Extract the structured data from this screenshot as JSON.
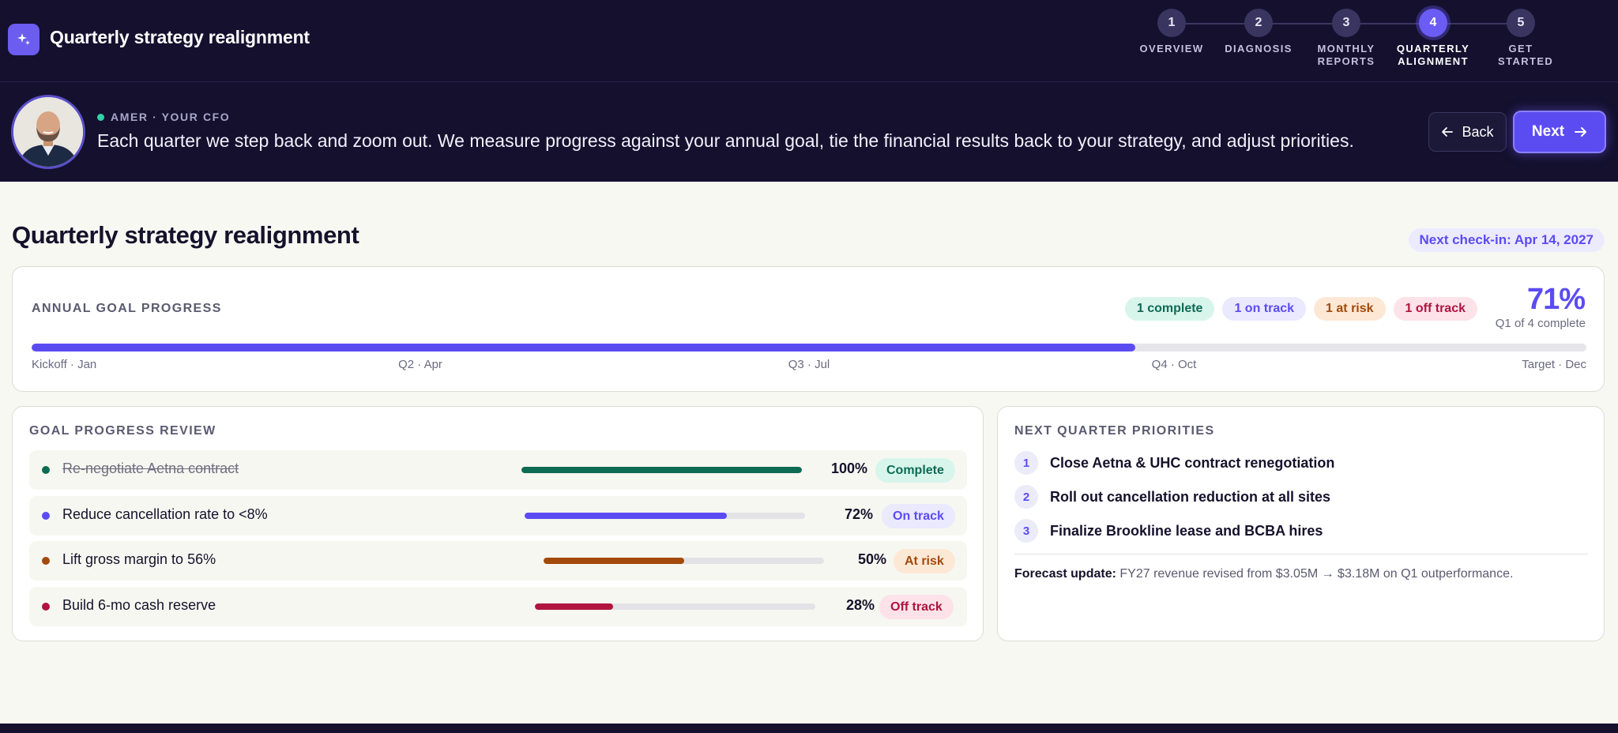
{
  "header": {
    "title": "Quarterly strategy realignment",
    "steps": [
      {
        "number": "1",
        "label": "OVERVIEW"
      },
      {
        "number": "2",
        "label": "DIAGNOSIS"
      },
      {
        "number": "3",
        "label": "MONTHLY REPORTS"
      },
      {
        "number": "4",
        "label": "QUARTERLY ALIGNMENT",
        "active": true
      },
      {
        "number": "5",
        "label": "GET STARTED"
      }
    ]
  },
  "advisor": {
    "tag": "AMER · YOUR CFO",
    "message": "Each quarter we step back and zoom out. We measure progress against your annual goal, tie the financial results back to your strategy, and adjust priorities.",
    "back_label": "Back",
    "next_label": "Next"
  },
  "page": {
    "title": "Quarterly strategy realignment",
    "next_checkin": "Next check-in: Apr 14, 2027"
  },
  "annual_goal": {
    "title": "ANNUAL GOAL PROGRESS",
    "chips": {
      "complete": "1 complete",
      "on_track": "1 on track",
      "at_risk": "1 at risk",
      "off_track": "1 off track"
    },
    "percent_label": "71%",
    "progress": 0.71,
    "sub_label": "Q1 of 4 complete",
    "milestones": [
      "Kickoff · Jan",
      "Q2 · Apr",
      "Q3 · Jul",
      "Q4 · Oct",
      "Target · Dec"
    ]
  },
  "goal_review": {
    "title": "GOAL PROGRESS REVIEW",
    "goals": [
      {
        "name": "Re-negotiate Aetna contract",
        "percent_label": "100%",
        "progress": 1.0,
        "status": "Complete",
        "done": true,
        "color": "#0d6b53",
        "badge_bg": "#d8f5ec",
        "badge_fg": "#0d6b53"
      },
      {
        "name": "Reduce cancellation rate to <8%",
        "percent_label": "72%",
        "progress": 0.72,
        "status": "On track",
        "done": false,
        "color": "#5b4cf2",
        "badge_bg": "#ebe9fd",
        "badge_fg": "#5b4cf2"
      },
      {
        "name": "Lift gross margin to 56%",
        "percent_label": "50%",
        "progress": 0.5,
        "status": "At risk",
        "done": false,
        "color": "#a34a0b",
        "badge_bg": "#fde8d6",
        "badge_fg": "#a34a0b"
      },
      {
        "name": "Build 6-mo cash reserve",
        "percent_label": "28%",
        "progress": 0.28,
        "status": "Off track",
        "done": false,
        "color": "#b0143f",
        "badge_bg": "#fde2ea",
        "badge_fg": "#b0143f"
      }
    ]
  },
  "priorities": {
    "title": "NEXT QUARTER PRIORITIES",
    "items": [
      {
        "number": "1",
        "text": "Close Aetna & UHC contract renegotiation"
      },
      {
        "number": "2",
        "text": "Roll out cancellation reduction at all sites"
      },
      {
        "number": "3",
        "text": "Finalize Brookline lease and BCBA hires"
      }
    ],
    "forecast_label": "Forecast update:",
    "forecast_text": "FY27 revenue revised from $3.05M → $3.18M on Q1 outperformance."
  },
  "icons": {
    "app": "sparkle-icon",
    "back": "arrow-left-icon",
    "next": "arrow-right-icon"
  },
  "colors": {
    "accent": "#5b4cf2",
    "header_bg": "#14102e",
    "page_bg": "#f8f8f3"
  }
}
